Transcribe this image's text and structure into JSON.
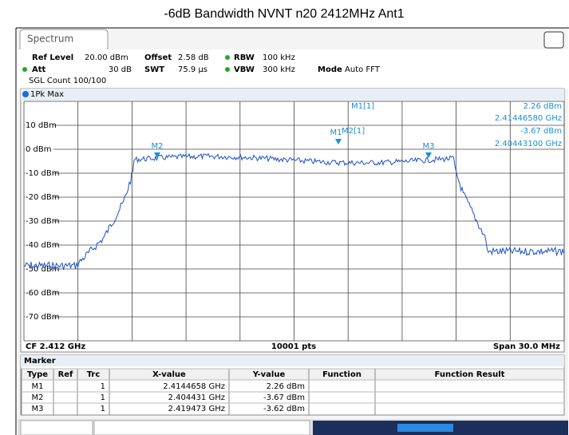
{
  "title": "-6dB Bandwidth NVNT n20 2412MHz Ant1",
  "tab": "Spectrum",
  "settings": {
    "ref_level": {
      "label": "Ref Level",
      "value": "20.00 dBm"
    },
    "offset": {
      "label": "Offset",
      "value": "2.58 dB"
    },
    "rbw": {
      "label": "RBW",
      "value": "100 kHz"
    },
    "att": {
      "label": "Att",
      "value": "30 dB"
    },
    "swt": {
      "label": "SWT",
      "value": "75.9 µs"
    },
    "vbw": {
      "label": "VBW",
      "value": "300 kHz"
    },
    "mode": {
      "label": "Mode",
      "value": "Auto FFT"
    },
    "count": "SGL Count 100/100"
  },
  "trace_label": "1Pk Max",
  "y_labels": [
    "10 dBm",
    "0 dBm",
    "-10 dBm",
    "-20 dBm",
    "-30 dBm",
    "-40 dBm",
    "-50 dBm",
    "-60 dBm",
    "-70 dBm"
  ],
  "marker_flags": [
    "M1",
    "M2",
    "M3"
  ],
  "marker_info": {
    "m1_name": "M1[1]",
    "m1_level": "2.26 dBm",
    "m1_freq": "2.41446580 GHz",
    "m2_name": "M2[1]",
    "m2_level": "-3.67 dBm",
    "m2_freq": "2.40443100 GHz"
  },
  "footer": {
    "center": "CF 2.412 GHz",
    "points": "10001 pts",
    "span": "Span 30.0 MHz"
  },
  "table": {
    "title": "Marker",
    "headers": [
      "Type",
      "Ref",
      "Trc",
      "X-value",
      "Y-value",
      "Function",
      "Function Result"
    ],
    "rows": [
      [
        "M1",
        "",
        "1",
        "2.4144658 GHz",
        "2.26 dBm",
        "",
        ""
      ],
      [
        "M2",
        "",
        "1",
        "2.404431 GHz",
        "-3.67 dBm",
        "",
        ""
      ],
      [
        "M3",
        "",
        "1",
        "2.419473 GHz",
        "-3.62 dBm",
        "",
        ""
      ]
    ]
  }
}
